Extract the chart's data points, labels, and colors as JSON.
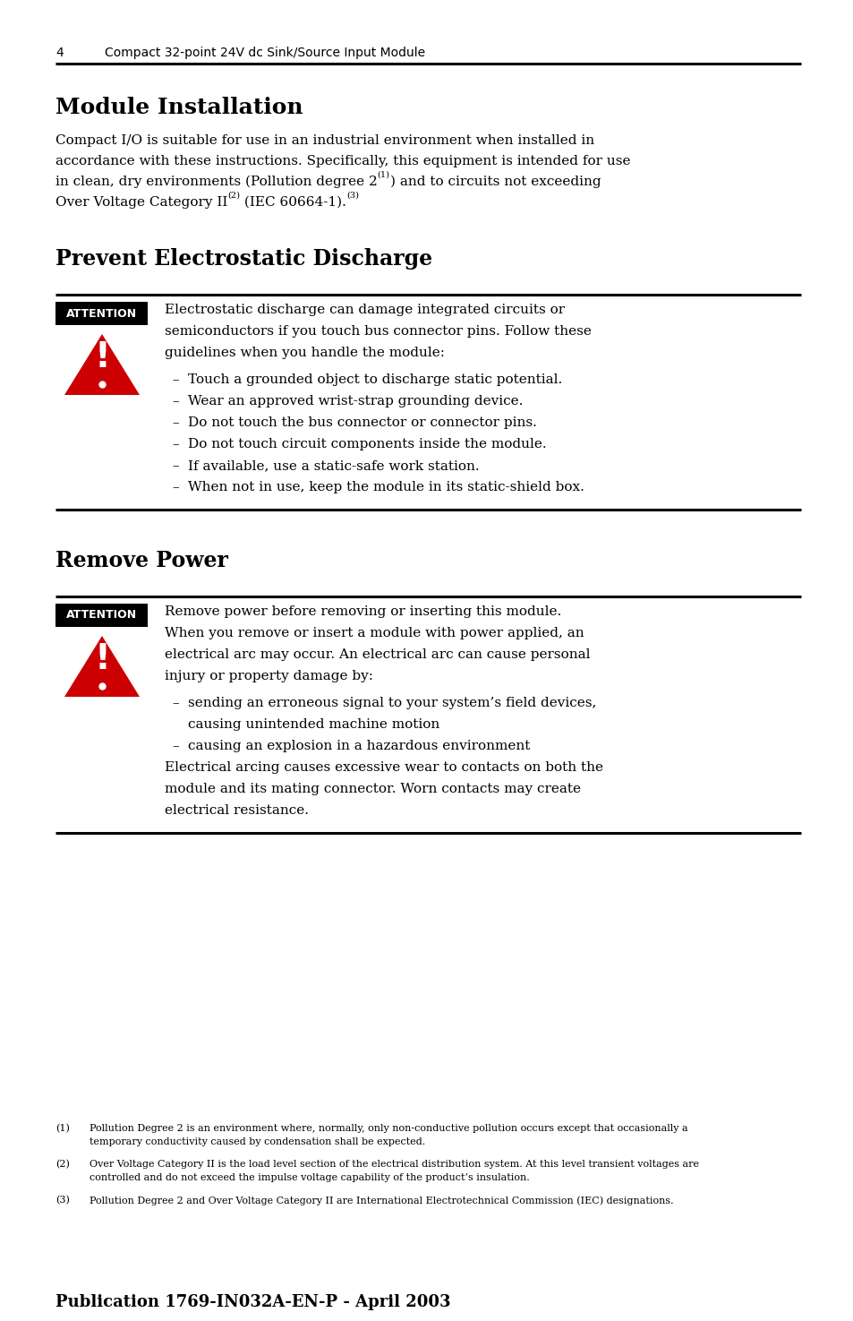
{
  "page_num": "4",
  "page_header": "Compact 32-point 24V dc Sink/Source Input Module",
  "section1_title": "Module Installation",
  "section2_title": "Prevent Electrostatic Discharge",
  "attention1_text_lines": [
    "Electrostatic discharge can damage integrated circuits or",
    "semiconductors if you touch bus connector pins. Follow these",
    "guidelines when you handle the module:"
  ],
  "attention1_bullets": [
    "Touch a grounded object to discharge static potential.",
    "Wear an approved wrist-strap grounding device.",
    "Do not touch the bus connector or connector pins.",
    "Do not touch circuit components inside the module.",
    "If available, use a static-safe work station.",
    "When not in use, keep the module in its static-shield box."
  ],
  "section3_title": "Remove Power",
  "attention2_text_lines": [
    "Remove power before removing or inserting this module.",
    "When you remove or insert a module with power applied, an",
    "electrical arc may occur. An electrical arc can cause personal",
    "injury or property damage by:"
  ],
  "attention2_bullet1_lines": [
    "sending an erroneous signal to your system’s field devices,",
    "causing unintended machine motion"
  ],
  "attention2_bullet2": "causing an explosion in a hazardous environment",
  "attention2_footer_lines": [
    "Electrical arcing causes excessive wear to contacts on both the",
    "module and its mating connector. Worn contacts may create",
    "electrical resistance."
  ],
  "footnote1_num": "(1)",
  "footnote1_lines": [
    "Pollution Degree 2 is an environment where, normally, only non-conductive pollution occurs except that occasionally a",
    "temporary conductivity caused by condensation shall be expected."
  ],
  "footnote2_num": "(2)",
  "footnote2_lines": [
    "Over Voltage Category II is the load level section of the electrical distribution system. At this level transient voltages are",
    "controlled and do not exceed the impulse voltage capability of the product’s insulation."
  ],
  "footnote3_num": "(3)",
  "footnote3_lines": [
    "Pollution Degree 2 and Over Voltage Category II are International Electrotechnical Commission (IEC) designations."
  ],
  "publication": "Publication 1769-IN032A-EN-P - April 2003",
  "bg_color": "#ffffff",
  "text_color": "#000000",
  "attention_bg": "#000000",
  "attention_fg": "#ffffff",
  "triangle_color": "#cc0000",
  "line_color": "#000000"
}
